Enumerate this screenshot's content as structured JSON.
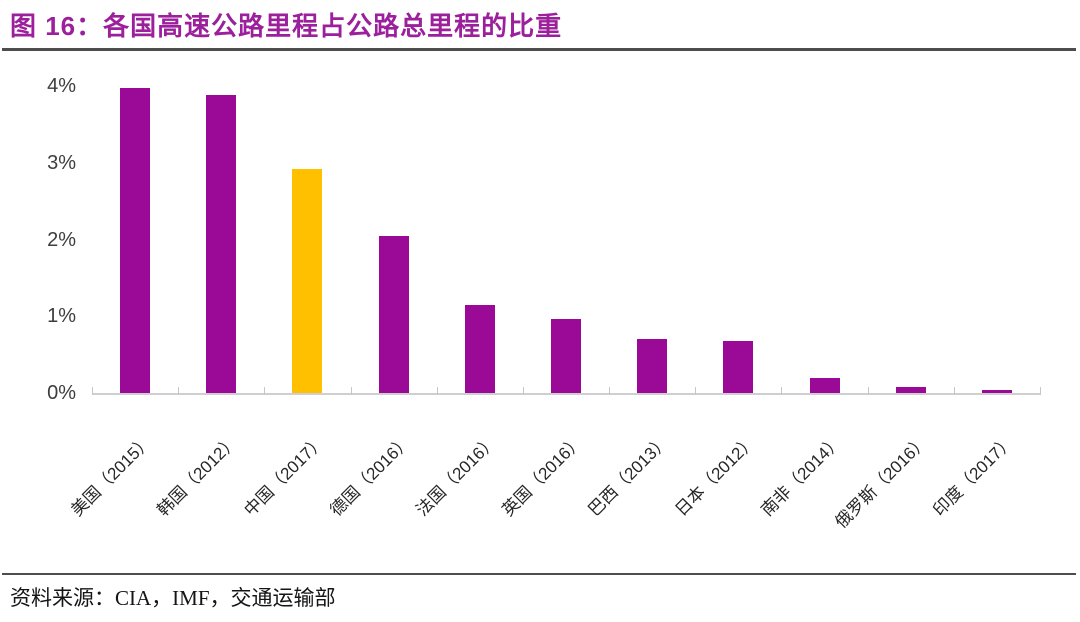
{
  "header": {
    "title": "图 16：各国高速公路里程占公路总里程的比重"
  },
  "chart_data": {
    "type": "bar",
    "title": "各国高速公路里程占公路总里程的比重",
    "categories": [
      "美国（2015）",
      "韩国（2012）",
      "中国（2017）",
      "德国（2016）",
      "法国（2016）",
      "英国（2016）",
      "巴西（2013）",
      "日本（2012）",
      "南非（2014）",
      "俄罗斯（2016）",
      "印度（2017）"
    ],
    "values": [
      3.97,
      3.88,
      2.92,
      2.05,
      1.15,
      0.97,
      0.7,
      0.68,
      0.19,
      0.08,
      0.04
    ],
    "unit": "%",
    "xlabel": "",
    "ylabel": "",
    "ylim": [
      0,
      4
    ],
    "y_tick_labels": [
      "0%",
      "1%",
      "2%",
      "3%",
      "4%"
    ],
    "grid": "off",
    "legend": "none",
    "highlight_index": 2,
    "colors": {
      "bar_default": "#9A0A97",
      "bar_highlight": "#FFC000",
      "title": "#9C1F9C",
      "axis_line": "#CFCFCF"
    }
  },
  "footer": {
    "source": "资料来源：CIA，IMF，交通运输部"
  }
}
